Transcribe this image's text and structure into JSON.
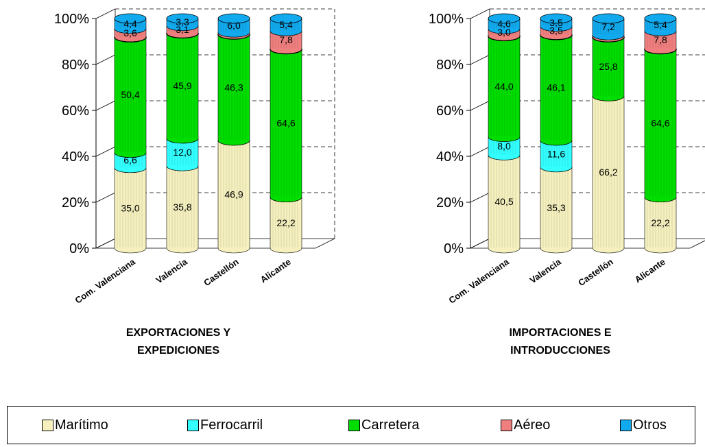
{
  "chart_data": [
    {
      "type": "bar",
      "stacked": true,
      "percent": true,
      "title": "EXPORTACIONES Y EXPEDICIONES",
      "title_lines": [
        "EXPORTACIONES Y",
        "EXPEDICIONES"
      ],
      "categories": [
        "Com. Valenciana",
        "Valencia",
        "Castellón",
        "Alicante"
      ],
      "yticks": [
        "0%",
        "20%",
        "40%",
        "60%",
        "80%",
        "100%"
      ],
      "ylim": [
        0,
        100
      ],
      "grid": true,
      "series": [
        {
          "name": "Marítimo",
          "values": [
            35.0,
            35.8,
            46.9,
            22.2
          ],
          "labels": [
            "35,0",
            "35,8",
            "46,9",
            "22,2"
          ]
        },
        {
          "name": "Ferrocarril",
          "values": [
            6.6,
            12.0,
            0,
            0
          ],
          "labels": [
            "6,6",
            "12,0",
            "",
            ""
          ]
        },
        {
          "name": "Carretera",
          "values": [
            50.4,
            45.9,
            46.3,
            64.6
          ],
          "labels": [
            "50,4",
            "45,9",
            "46,3",
            "64,6"
          ]
        },
        {
          "name": "Aéreo",
          "values": [
            3.6,
            3.1,
            0.8,
            7.8
          ],
          "labels": [
            "3,6",
            "3,1",
            "",
            "7,8"
          ]
        },
        {
          "name": "Otros",
          "values": [
            4.4,
            3.3,
            6.0,
            5.4
          ],
          "labels": [
            "4,4",
            "3,3",
            "6,0",
            "5,4"
          ]
        }
      ]
    },
    {
      "type": "bar",
      "stacked": true,
      "percent": true,
      "title": "IMPORTACIONES E INTRODUCCIONES",
      "title_lines": [
        "IMPORTACIONES E",
        "INTRODUCCIONES"
      ],
      "categories": [
        "Com. Valenciana",
        "Valencia",
        "Castellón",
        "Alicante"
      ],
      "yticks": [
        "0%",
        "20%",
        "40%",
        "60%",
        "80%",
        "100%"
      ],
      "ylim": [
        0,
        100
      ],
      "grid": true,
      "series": [
        {
          "name": "Marítimo",
          "values": [
            40.5,
            35.3,
            66.2,
            22.2
          ],
          "labels": [
            "40,5",
            "35,3",
            "66,2",
            "22,2"
          ]
        },
        {
          "name": "Ferrocarril",
          "values": [
            8.0,
            11.6,
            0,
            0
          ],
          "labels": [
            "8,0",
            "11,6",
            "",
            ""
          ]
        },
        {
          "name": "Carretera",
          "values": [
            44.0,
            46.1,
            25.8,
            64.6
          ],
          "labels": [
            "44,0",
            "46,1",
            "25,8",
            "64,6"
          ]
        },
        {
          "name": "Aéreo",
          "values": [
            3.0,
            3.5,
            0.8,
            7.8
          ],
          "labels": [
            "3,0",
            "3,5",
            "",
            "7,8"
          ]
        },
        {
          "name": "Otros",
          "values": [
            4.6,
            3.5,
            7.2,
            5.4
          ],
          "labels": [
            "4,6",
            "3,5",
            "7,2",
            "5,4"
          ]
        }
      ]
    }
  ],
  "legend": [
    {
      "label": "Marítimo",
      "color": "#f5f0be"
    },
    {
      "label": "Ferrocarril",
      "color": "#33ffff"
    },
    {
      "label": "Carretera",
      "color": "#00dd00"
    },
    {
      "label": "Aéreo",
      "color": "#ef7f7f"
    },
    {
      "label": "Otros",
      "color": "#11aaee"
    }
  ],
  "colors": {
    "Marítimo": "#f5f0be",
    "Ferrocarril": "#33ffff",
    "Carretera": "#00dd00",
    "Aéreo": "#ef7f7f",
    "Otros": "#11aaee"
  }
}
